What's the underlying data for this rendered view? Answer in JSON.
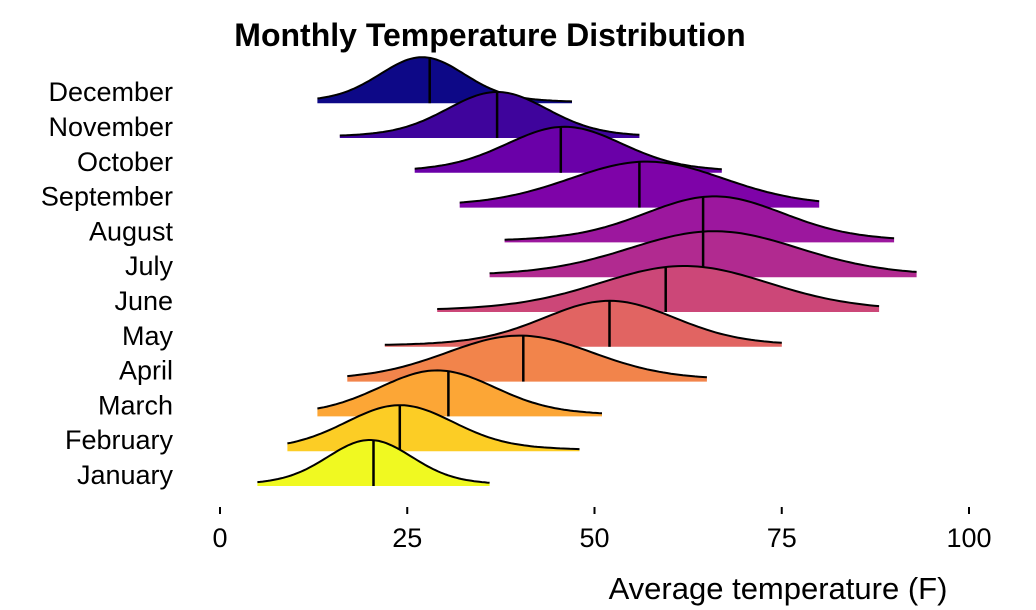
{
  "chart_data": {
    "type": "ridgeline",
    "title": "Monthly Temperature Distribution",
    "xlabel": "Average temperature (F)",
    "ylabel": "",
    "xlim": [
      0,
      100
    ],
    "x_ticks": [
      0,
      25,
      50,
      75,
      100
    ],
    "grid": false,
    "legend": "none",
    "categories": [
      "January",
      "February",
      "March",
      "April",
      "May",
      "June",
      "July",
      "August",
      "September",
      "October",
      "November",
      "December"
    ],
    "series": [
      {
        "name": "January",
        "min": 5,
        "max": 36,
        "median": 20.5,
        "peak": 20,
        "spread": 5.5,
        "color": "#f0f921"
      },
      {
        "name": "February",
        "min": 9,
        "max": 48,
        "median": 24,
        "peak": 24,
        "spread": 7,
        "color": "#fccd25"
      },
      {
        "name": "March",
        "min": 13,
        "max": 51,
        "median": 30.5,
        "peak": 29,
        "spread": 7.5,
        "color": "#fca636"
      },
      {
        "name": "April",
        "min": 17,
        "max": 65,
        "median": 40.5,
        "peak": 40,
        "spread": 9.5,
        "color": "#f2844b"
      },
      {
        "name": "May",
        "min": 22,
        "max": 75,
        "median": 52,
        "peak": 52,
        "spread": 8.5,
        "color": "#e16462"
      },
      {
        "name": "June",
        "min": 29,
        "max": 88,
        "median": 59.5,
        "peak": 62,
        "spread": 11,
        "color": "#cc4778"
      },
      {
        "name": "July",
        "min": 36,
        "max": 93,
        "median": 64.5,
        "peak": 66,
        "spread": 11,
        "color": "#b12a90"
      },
      {
        "name": "August",
        "min": 38,
        "max": 90,
        "median": 64.5,
        "peak": 66,
        "spread": 9,
        "color": "#9c179e"
      },
      {
        "name": "September",
        "min": 32,
        "max": 80,
        "median": 56,
        "peak": 57,
        "spread": 10,
        "color": "#7e03a8"
      },
      {
        "name": "October",
        "min": 26,
        "max": 67,
        "median": 45.5,
        "peak": 46,
        "spread": 7.5,
        "color": "#6a00a8"
      },
      {
        "name": "November",
        "min": 16,
        "max": 56,
        "median": 37,
        "peak": 37,
        "spread": 6.5,
        "color": "#3f049c"
      },
      {
        "name": "December",
        "min": 13,
        "max": 47,
        "median": 28,
        "peak": 27,
        "spread": 5.5,
        "color": "#0d0887"
      }
    ]
  }
}
